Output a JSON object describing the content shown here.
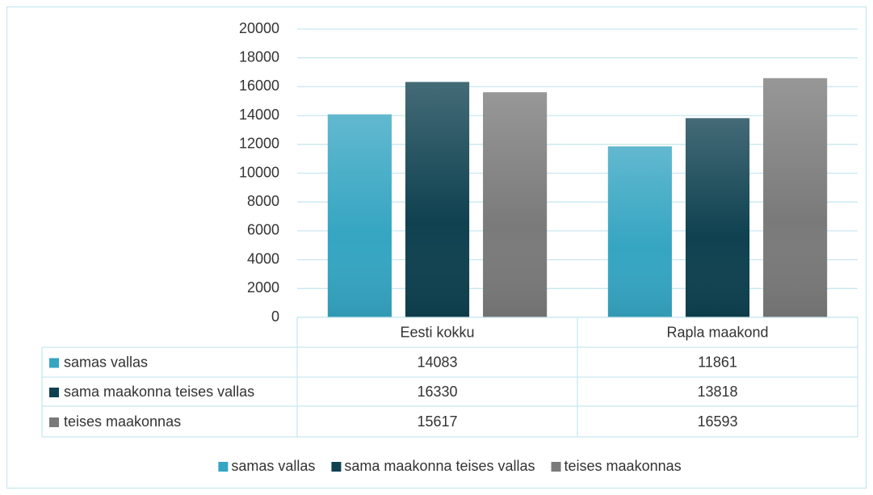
{
  "chart_data": {
    "type": "bar",
    "categories": [
      "Eesti kokku",
      "Rapla maakond"
    ],
    "series": [
      {
        "name": "samas vallas",
        "color": "#35a5c2",
        "values": [
          14083,
          11861
        ]
      },
      {
        "name": "sama maakonna teises vallas",
        "color": "#0f4150",
        "values": [
          16330,
          13818
        ]
      },
      {
        "name": "teises maakonnas",
        "color": "#7a7a7a",
        "values": [
          15617,
          16593
        ]
      }
    ],
    "ylim": [
      0,
      20000
    ],
    "yticks": [
      0,
      2000,
      4000,
      6000,
      8000,
      10000,
      12000,
      14000,
      16000,
      18000,
      20000
    ],
    "grid": true,
    "legend": "bottom"
  }
}
